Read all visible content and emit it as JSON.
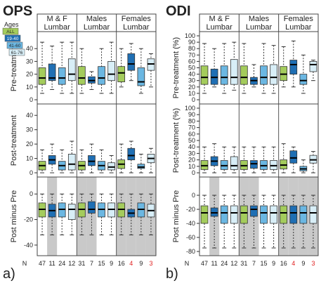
{
  "chart_data": [
    {
      "type": "box",
      "panel_label": "a)",
      "title": "OPS",
      "ages_legend": {
        "title": "Ages",
        "items": [
          {
            "label": "ALL",
            "color": "#a4cc5c"
          },
          {
            "label": "19-40",
            "color": "#1f6fb4"
          },
          {
            "label": "41-60",
            "color": "#6bb7e2"
          },
          {
            "label": "61-76",
            "color": "#d8eef7"
          }
        ]
      },
      "group_headers": [
        "M & F\nLumbar",
        "Males\nLumbar",
        "Females\nLumbar"
      ],
      "n_label": "N",
      "n_values": [
        "47",
        "11",
        "24",
        "12",
        "31",
        "7",
        "15",
        "9",
        "16",
        "4",
        "9",
        "3"
      ],
      "n_highlight": [
        false,
        false,
        false,
        false,
        false,
        false,
        false,
        false,
        false,
        true,
        false,
        true
      ],
      "colors": [
        "#a4cc5c",
        "#1f6fb4",
        "#6bb7e2",
        "#d8eef7"
      ],
      "rows": [
        {
          "ylabel": "Pre-treatment",
          "ylim": [
            0,
            50
          ],
          "yticks": [
            0,
            10,
            20,
            30,
            40
          ],
          "shaded": [],
          "boxes": [
            [
              5,
              12,
              17,
              25,
              45
            ],
            [
              8,
              15,
              17,
              28,
              42
            ],
            [
              5,
              12,
              17,
              25,
              45
            ],
            [
              5,
              15,
              20,
              32,
              45
            ],
            [
              5,
              12,
              17,
              26,
              40
            ],
            [
              8,
              13,
              15,
              18,
              22
            ],
            [
              5,
              12,
              17,
              26,
              40
            ],
            [
              5,
              15,
              20,
              30,
              45
            ],
            [
              10,
              14,
              21,
              26,
              40
            ],
            [
              15,
              23,
              28,
              36,
              44
            ],
            [
              5,
              11,
              14,
              25,
              40
            ],
            [
              10,
              23,
              28,
              32,
              36
            ]
          ]
        },
        {
          "ylabel": "Post-treatment",
          "ylim": [
            0,
            45
          ],
          "yticks": [
            0,
            10,
            20,
            30,
            40
          ],
          "shaded": [],
          "boxes": [
            [
              0,
              2,
              5,
              8,
              16
            ],
            [
              0,
              6,
              9,
              12,
              20
            ],
            [
              0,
              2,
              5,
              8,
              16
            ],
            [
              0,
              2,
              6,
              13,
              22
            ],
            [
              0,
              2,
              5,
              8,
              16
            ],
            [
              0,
              5,
              8,
              12,
              20
            ],
            [
              0,
              2,
              5,
              8,
              16
            ],
            [
              0,
              2,
              4,
              7,
              12
            ],
            [
              0,
              3,
              6,
              9,
              20
            ],
            [
              0,
              9,
              12,
              17,
              22
            ],
            [
              0,
              3,
              4,
              6,
              13
            ],
            [
              0,
              7,
              10,
              13,
              17
            ]
          ]
        },
        {
          "ylabel": "Post minus Pre",
          "ylim": [
            -45,
            10
          ],
          "yticks": [
            -40,
            -20,
            0
          ],
          "shaded": [
            1,
            4,
            5,
            8,
            9,
            10,
            11
          ],
          "boxes": [
            [
              -32,
              -18,
              -12,
              -7,
              0
            ],
            [
              -32,
              -18,
              -13,
              -8,
              0
            ],
            [
              -32,
              -18,
              -12,
              -7,
              0
            ],
            [
              -32,
              -20,
              -12,
              -8,
              0
            ],
            [
              -32,
              -18,
              -12,
              -7,
              0
            ],
            [
              -32,
              -15,
              -12,
              -6,
              0
            ],
            [
              -32,
              -18,
              -12,
              -7,
              0
            ],
            [
              -32,
              -18,
              -12,
              -7,
              0
            ],
            [
              -32,
              -18,
              -12,
              -7,
              0
            ],
            [
              -32,
              -18,
              -15,
              -12,
              0
            ],
            [
              -32,
              -18,
              -12,
              -7,
              0
            ],
            [
              -32,
              -18,
              -13,
              -8,
              0
            ]
          ]
        }
      ]
    },
    {
      "type": "box",
      "panel_label": "b)",
      "title": "ODI",
      "group_headers": [
        "M & F\nLumbar",
        "Males\nLumbar",
        "Females\nLumbar"
      ],
      "n_label": "N",
      "n_values": [
        "47",
        "11",
        "24",
        "12",
        "31",
        "7",
        "15",
        "9",
        "16",
        "4",
        "9",
        "3"
      ],
      "n_highlight": [
        false,
        false,
        false,
        false,
        false,
        false,
        false,
        false,
        false,
        true,
        false,
        true
      ],
      "colors": [
        "#a4cc5c",
        "#1f6fb4",
        "#6bb7e2",
        "#d8eef7"
      ],
      "rows": [
        {
          "ylabel": "Pre-treatment (%)",
          "ylim": [
            0,
            100
          ],
          "yticks": [
            0,
            10,
            20,
            30,
            40,
            50,
            60,
            70,
            80,
            90,
            100
          ],
          "shaded": [],
          "boxes": [
            [
              10,
              24,
              35,
              53,
              88
            ],
            [
              20,
              24,
              35,
              48,
              80
            ],
            [
              10,
              24,
              35,
              53,
              88
            ],
            [
              15,
              24,
              35,
              63,
              90
            ],
            [
              10,
              24,
              35,
              53,
              88
            ],
            [
              20,
              24,
              30,
              35,
              55
            ],
            [
              10,
              24,
              35,
              53,
              88
            ],
            [
              10,
              24,
              35,
              55,
              85
            ],
            [
              20,
              30,
              40,
              52,
              83
            ],
            [
              20,
              40,
              55,
              62,
              92
            ],
            [
              10,
              24,
              30,
              40,
              70
            ],
            [
              30,
              44,
              55,
              60,
              62
            ]
          ]
        },
        {
          "ylabel": "Post-treatment (%)",
          "ylim": [
            0,
            100
          ],
          "yticks": [
            0,
            10,
            20,
            30,
            40,
            50,
            60,
            70,
            80,
            90,
            100
          ],
          "shaded": [],
          "boxes": [
            [
              0,
              5,
              11,
              19,
              40
            ],
            [
              0,
              11,
              18,
              25,
              45
            ],
            [
              0,
              5,
              11,
              19,
              40
            ],
            [
              0,
              5,
              11,
              25,
              40
            ],
            [
              0,
              5,
              11,
              19,
              40
            ],
            [
              0,
              7,
              14,
              19,
              40
            ],
            [
              0,
              5,
              11,
              19,
              40
            ],
            [
              0,
              5,
              11,
              19,
              40
            ],
            [
              0,
              6,
              12,
              20,
              45
            ],
            [
              0,
              15,
              23,
              34,
              40
            ],
            [
              0,
              3,
              6,
              10,
              20
            ],
            [
              0,
              15,
              20,
              27,
              33
            ]
          ]
        },
        {
          "ylabel": "Post minus Pre",
          "ylim": [
            -80,
            20
          ],
          "yticks": [
            -80,
            -60,
            -40,
            -20,
            0
          ],
          "shaded": [
            1,
            4,
            5,
            8,
            9,
            10,
            11
          ],
          "boxes": [
            [
              -75,
              -40,
              -25,
              -15,
              0
            ],
            [
              -75,
              -30,
              -25,
              -18,
              0
            ],
            [
              -75,
              -40,
              -25,
              -15,
              0
            ],
            [
              -75,
              -40,
              -25,
              -15,
              0
            ],
            [
              -75,
              -40,
              -25,
              -15,
              0
            ],
            [
              -75,
              -30,
              -20,
              -15,
              0
            ],
            [
              -75,
              -40,
              -25,
              -15,
              0
            ],
            [
              -75,
              -40,
              -25,
              -15,
              0
            ],
            [
              -75,
              -40,
              -25,
              -15,
              0
            ],
            [
              -75,
              -40,
              -25,
              -15,
              0
            ],
            [
              -75,
              -40,
              -25,
              -15,
              0
            ],
            [
              -75,
              -40,
              -25,
              -15,
              0
            ]
          ]
        }
      ]
    }
  ]
}
